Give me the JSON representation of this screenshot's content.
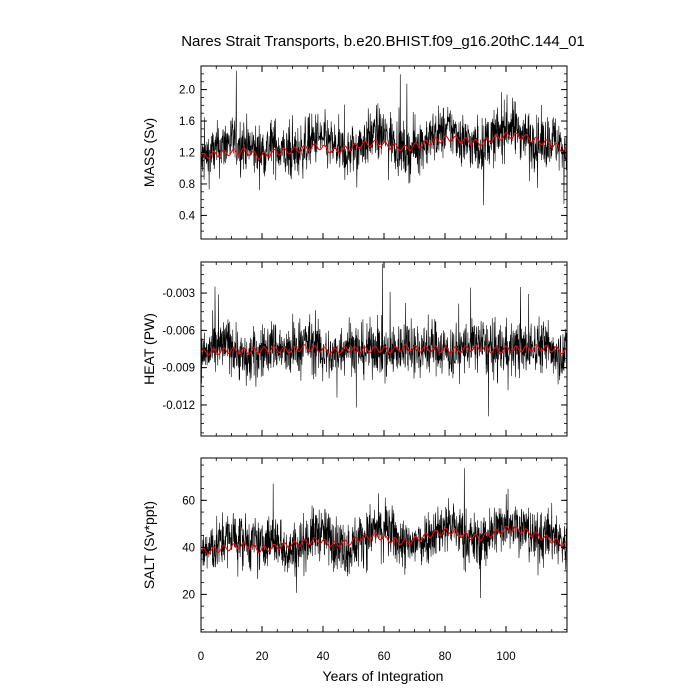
{
  "chart_data": {
    "type": "line",
    "title": "Nares Strait Transports, b.e20.BHIST.f09_g16.20thC.144_01",
    "xlabel": "Years of Integration",
    "xlim": [
      0,
      120
    ],
    "xticks": [
      "0",
      "20",
      "40",
      "60",
      "80",
      "100"
    ],
    "grid": false,
    "colors": {
      "monthly": "#000000",
      "smoothed": "#ff0000"
    },
    "panels": [
      {
        "ylabel": "MASS (Sv)",
        "ylim": [
          0.1,
          2.3
        ],
        "yticks": [
          "0.4",
          "0.8",
          "1.2",
          "1.6",
          "2.0"
        ],
        "series": [
          {
            "values": [
              1.1,
              1.22,
              1.35,
              1.3,
              1.2,
              1.3,
              1.15,
              1.25,
              1.4,
              1.28,
              1.18,
              1.32,
              1.45,
              1.38,
              1.2,
              1.3,
              1.42,
              1.5,
              1.35,
              1.25,
              1.4,
              1.55,
              1.45,
              1.3,
              1.38,
              1.2
            ]
          },
          {
            "values": [
              1.15,
              1.18,
              1.2,
              1.22,
              1.15,
              1.2,
              1.22,
              1.25,
              1.28,
              1.22,
              1.25,
              1.3,
              1.32,
              1.28,
              1.25,
              1.3,
              1.35,
              1.38,
              1.35,
              1.32,
              1.38,
              1.42,
              1.4,
              1.35,
              1.3,
              1.22
            ]
          }
        ]
      },
      {
        "ylabel": "HEAT (PW)",
        "ylim": [
          -0.0145,
          -0.0005
        ],
        "yticks": [
          "-0.003",
          "-0.006",
          "-0.009",
          "-0.012"
        ],
        "series": [
          {
            "values": [
              -0.008,
              -0.0075,
              -0.007,
              -0.0085,
              -0.0078,
              -0.0072,
              -0.008,
              -0.0068,
              -0.0075,
              -0.0082,
              -0.007,
              -0.0077,
              -0.0073,
              -0.008,
              -0.007,
              -0.0076,
              -0.0072,
              -0.0079,
              -0.0074,
              -0.007,
              -0.0078,
              -0.0073,
              -0.0076,
              -0.0071,
              -0.0075,
              -0.008
            ]
          },
          {
            "values": [
              -0.0078,
              -0.0077,
              -0.0076,
              -0.0077,
              -0.0076,
              -0.0075,
              -0.0076,
              -0.0074,
              -0.0075,
              -0.0077,
              -0.0075,
              -0.0076,
              -0.0075,
              -0.0076,
              -0.0074,
              -0.0075,
              -0.0075,
              -0.0076,
              -0.0075,
              -0.0074,
              -0.0076,
              -0.0075,
              -0.0075,
              -0.0074,
              -0.0075,
              -0.0077
            ]
          }
        ]
      },
      {
        "ylabel": "SALT (Sv*ppt)",
        "ylim": [
          4,
          78
        ],
        "yticks": [
          "20",
          "40",
          "60"
        ],
        "series": [
          {
            "values": [
              38,
              40,
              45,
              43,
              40,
              44,
              38,
              42,
              47,
              43,
              39,
              44,
              48,
              46,
              40,
              43,
              47,
              50,
              45,
              42,
              47,
              52,
              48,
              43,
              46,
              40
            ]
          },
          {
            "values": [
              38,
              39,
              40,
              41,
              39,
              40,
              41,
              42,
              43,
              41,
              42,
              44,
              45,
              43,
              42,
              44,
              46,
              47,
              45,
              44,
              46,
              48,
              47,
              45,
              43,
              41
            ]
          }
        ]
      }
    ]
  }
}
